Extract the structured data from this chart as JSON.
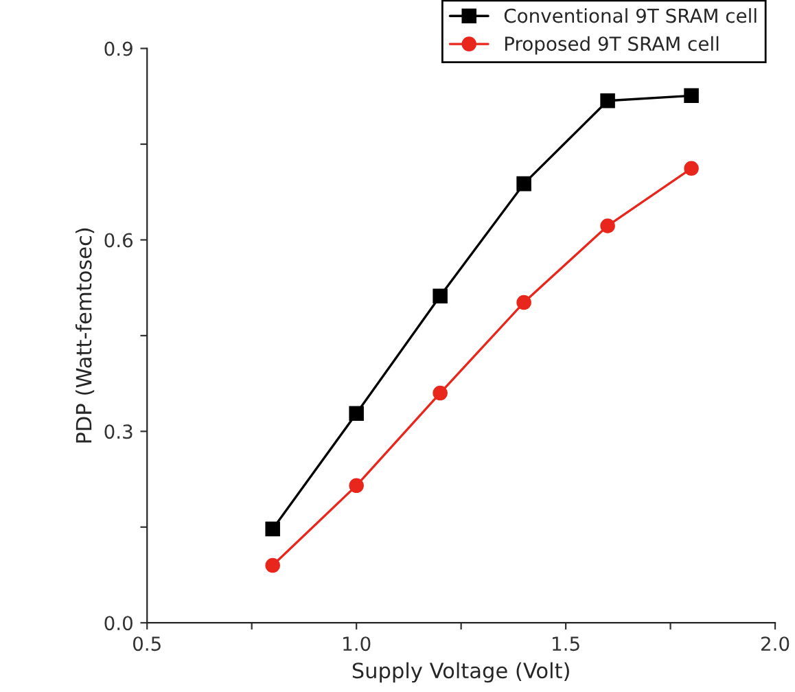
{
  "chart_data": {
    "type": "line",
    "xlabel": "Supply Voltage (Volt)",
    "ylabel": "PDP (Watt-femtosec)",
    "x": [
      0.8,
      1.0,
      1.2,
      1.4,
      1.6,
      1.8
    ],
    "series": [
      {
        "name": "Conventional 9T SRAM cell",
        "color": "#000000",
        "marker": "square",
        "values": [
          0.147,
          0.328,
          0.512,
          0.688,
          0.818,
          0.826
        ]
      },
      {
        "name": "Proposed 9T SRAM cell",
        "color": "#e8261c",
        "marker": "circle",
        "values": [
          0.09,
          0.215,
          0.36,
          0.502,
          0.622,
          0.712
        ]
      }
    ],
    "xlim": [
      0.5,
      2.0
    ],
    "ylim": [
      0.0,
      0.9
    ],
    "xticks": [
      {
        "value": 0.5,
        "label": "0.5"
      },
      {
        "value": 0.75,
        "label": null
      },
      {
        "value": 1.0,
        "label": "1.0"
      },
      {
        "value": 1.25,
        "label": null
      },
      {
        "value": 1.5,
        "label": "1.5"
      },
      {
        "value": 1.75,
        "label": null
      },
      {
        "value": 2.0,
        "label": "2.0"
      }
    ],
    "yticks": [
      {
        "value": 0.0,
        "label": "0.0"
      },
      {
        "value": 0.15,
        "label": null
      },
      {
        "value": 0.3,
        "label": "0.3"
      },
      {
        "value": 0.45,
        "label": null
      },
      {
        "value": 0.6,
        "label": "0.6"
      },
      {
        "value": 0.75,
        "label": null
      },
      {
        "value": 0.9,
        "label": "0.9"
      }
    ],
    "legend": "top right",
    "grid": false,
    "line_style": "solid"
  }
}
